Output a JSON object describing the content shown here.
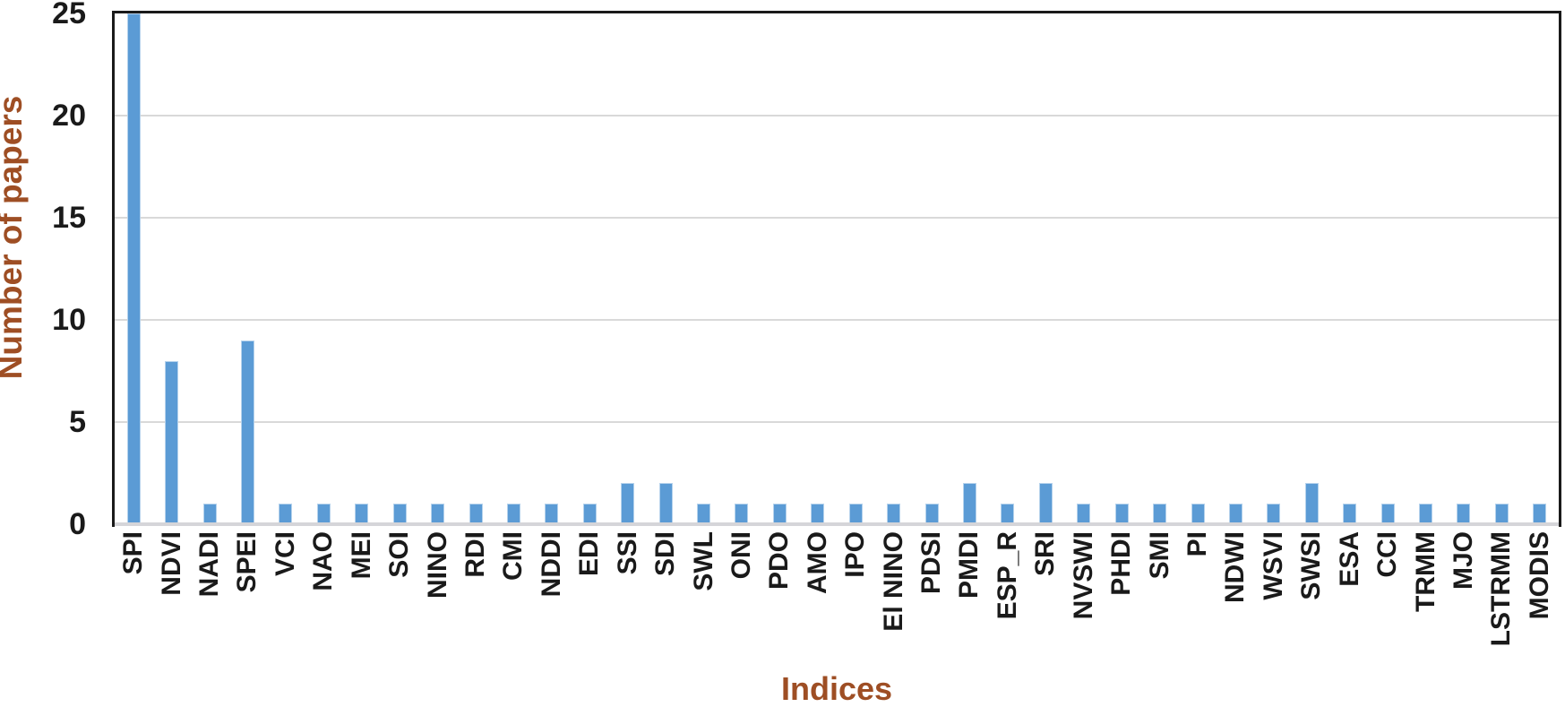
{
  "chart_data": {
    "type": "bar",
    "title": "",
    "xlabel": "Indices",
    "ylabel": "Number of papers",
    "categories": [
      "SPI",
      "NDVI",
      "NADI",
      "SPEI",
      "VCI",
      "NAO",
      "MEI",
      "SOI",
      "NINO",
      "RDI",
      "CMI",
      "NDDI",
      "EDI",
      "SSI",
      "SDI",
      "SWL",
      "ONI",
      "PDO",
      "AMO",
      "IPO",
      "El NINO",
      "PDSI",
      "PMDI",
      "ESP_R",
      "SRI",
      "NVSWI",
      "PHDI",
      "SMI",
      "PI",
      "NDWI",
      "WSVI",
      "SWSI",
      "ESA",
      "CCI",
      "TRMM",
      "MJO",
      "LSTRMM",
      "MODIS"
    ],
    "values": [
      25,
      8,
      1,
      9,
      1,
      1,
      1,
      1,
      1,
      1,
      1,
      1,
      1,
      2,
      2,
      1,
      1,
      1,
      1,
      1,
      1,
      1,
      2,
      1,
      2,
      1,
      1,
      1,
      1,
      1,
      1,
      2,
      1,
      1,
      1,
      1,
      1,
      1
    ],
    "ylim": [
      0,
      25
    ],
    "yticks": [
      0,
      5,
      10,
      15,
      20,
      25
    ],
    "grid": true,
    "legend": "none",
    "x_tick_rotation_degrees": 90,
    "colors": {
      "bar": "#5B9BD5",
      "axis_title": "#9E4E24",
      "tick_label": "#1a1a1a",
      "gridline": "#D9D9D9",
      "baseline": "#D5D5D9",
      "plot_border": "#1a1a1a"
    }
  }
}
